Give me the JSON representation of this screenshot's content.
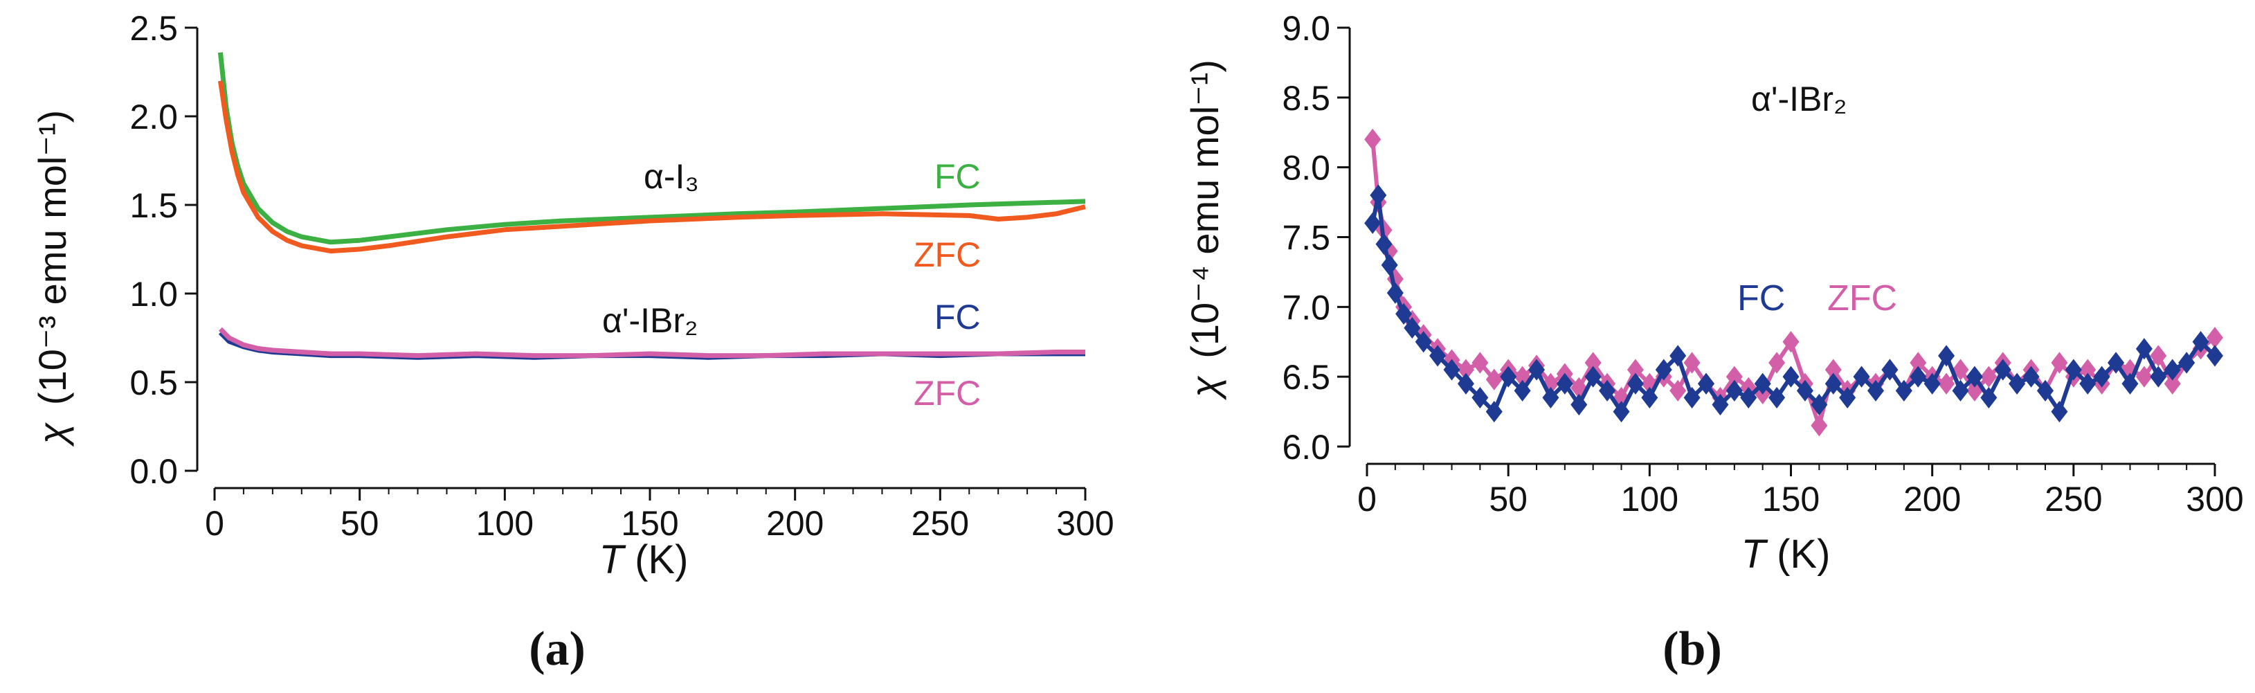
{
  "panels": [
    {
      "panel_label": "(a)",
      "x_label_italic": "T",
      "x_label_unit": " (K)",
      "y_label_symbol": "χ",
      "y_label_unit": "(10⁻³ emu mol⁻¹)",
      "colors": {
        "green": "#3cb043",
        "orange": "#f05a1e",
        "blue": "#1f3a93",
        "pink": "#d45fa9",
        "text": "#111111"
      },
      "annotations": [
        {
          "text": "α-I₃",
          "color": "#111111"
        },
        {
          "text": "FC",
          "color": "#3cb043"
        },
        {
          "text": "ZFC",
          "color": "#f05a1e"
        },
        {
          "text": "α'-IBr₂",
          "color": "#111111"
        },
        {
          "text": "FC",
          "color": "#1f3a93"
        },
        {
          "text": "ZFC",
          "color": "#d45fa9"
        }
      ]
    },
    {
      "panel_label": "(b)",
      "x_label_italic": "T",
      "x_label_unit": " (K)",
      "y_label_symbol": "χ",
      "y_label_unit": "(10⁻⁴ emu mol⁻¹)",
      "colors": {
        "blue": "#1f3a93",
        "pink": "#d45fa9",
        "text": "#111111"
      },
      "annotations": [
        {
          "text": "α'-IBr₂",
          "color": "#111111"
        },
        {
          "text": "FC",
          "color": "#1f3a93"
        },
        {
          "text": "ZFC",
          "color": "#d45fa9"
        }
      ]
    }
  ],
  "chart_data": [
    {
      "type": "line",
      "title": "",
      "xlabel": "T (K)",
      "ylabel": "χ (10⁻³ emu mol⁻¹)",
      "xlim": [
        0,
        300
      ],
      "ylim": [
        0,
        2.5
      ],
      "xticks": [
        0,
        50,
        100,
        150,
        200,
        250,
        300
      ],
      "yticks": [
        0.0,
        0.5,
        1.0,
        1.5,
        2.0,
        2.5
      ],
      "ytick_labels": [
        "0.0",
        "0.5",
        "1.0",
        "1.5",
        "2.0",
        "2.5"
      ],
      "series": [
        {
          "name": "α-I₃ FC",
          "color": "#3cb043",
          "x": [
            2,
            4,
            6,
            8,
            10,
            15,
            20,
            25,
            30,
            40,
            50,
            60,
            80,
            100,
            120,
            150,
            180,
            200,
            230,
            260,
            280,
            300
          ],
          "values": [
            2.36,
            2.05,
            1.85,
            1.72,
            1.62,
            1.48,
            1.4,
            1.35,
            1.32,
            1.29,
            1.3,
            1.32,
            1.36,
            1.39,
            1.41,
            1.43,
            1.45,
            1.46,
            1.48,
            1.5,
            1.51,
            1.52
          ]
        },
        {
          "name": "α-I₃ ZFC",
          "color": "#f05a1e",
          "x": [
            2,
            4,
            6,
            8,
            10,
            15,
            20,
            25,
            30,
            40,
            50,
            60,
            80,
            100,
            120,
            150,
            180,
            200,
            230,
            260,
            270,
            280,
            290,
            300
          ],
          "values": [
            2.2,
            1.98,
            1.8,
            1.67,
            1.57,
            1.43,
            1.35,
            1.3,
            1.27,
            1.24,
            1.25,
            1.27,
            1.32,
            1.36,
            1.38,
            1.41,
            1.43,
            1.44,
            1.45,
            1.44,
            1.42,
            1.43,
            1.45,
            1.49
          ]
        },
        {
          "name": "α'-IBr₂ FC",
          "color": "#1f3a93",
          "x": [
            2,
            5,
            10,
            15,
            20,
            30,
            40,
            50,
            70,
            90,
            110,
            130,
            150,
            170,
            190,
            210,
            230,
            250,
            270,
            290,
            300
          ],
          "values": [
            0.78,
            0.73,
            0.7,
            0.68,
            0.67,
            0.66,
            0.65,
            0.65,
            0.64,
            0.65,
            0.64,
            0.65,
            0.65,
            0.64,
            0.65,
            0.65,
            0.66,
            0.65,
            0.66,
            0.66,
            0.66
          ]
        },
        {
          "name": "α'-IBr₂ ZFC",
          "color": "#d45fa9",
          "x": [
            2,
            5,
            10,
            15,
            20,
            30,
            40,
            50,
            70,
            90,
            110,
            130,
            150,
            170,
            190,
            210,
            230,
            250,
            270,
            290,
            300
          ],
          "values": [
            0.8,
            0.75,
            0.71,
            0.69,
            0.68,
            0.67,
            0.66,
            0.66,
            0.65,
            0.66,
            0.65,
            0.65,
            0.66,
            0.65,
            0.65,
            0.66,
            0.66,
            0.66,
            0.66,
            0.67,
            0.67
          ]
        }
      ]
    },
    {
      "type": "line",
      "title": "",
      "xlabel": "T (K)",
      "ylabel": "χ (10⁻⁴ emu mol⁻¹)",
      "xlim": [
        0,
        300
      ],
      "ylim": [
        6.0,
        9.0
      ],
      "xticks": [
        0,
        50,
        100,
        150,
        200,
        250,
        300
      ],
      "yticks": [
        6.0,
        6.5,
        7.0,
        7.5,
        8.0,
        8.5,
        9.0
      ],
      "ytick_labels": [
        "6.0",
        "6.5",
        "7.0",
        "7.5",
        "8.0",
        "8.5",
        "9.0"
      ],
      "series": [
        {
          "name": "α'-IBr₂ ZFC",
          "color": "#d45fa9",
          "marker": "diamond",
          "x": [
            2,
            4,
            6,
            8,
            10,
            13,
            16,
            20,
            25,
            30,
            35,
            40,
            45,
            50,
            55,
            60,
            65,
            70,
            75,
            80,
            85,
            90,
            95,
            100,
            105,
            110,
            115,
            120,
            125,
            130,
            135,
            140,
            145,
            150,
            155,
            160,
            165,
            170,
            175,
            180,
            185,
            190,
            195,
            200,
            205,
            210,
            215,
            220,
            225,
            230,
            235,
            240,
            245,
            250,
            255,
            260,
            265,
            270,
            275,
            280,
            285,
            290,
            295,
            300
          ],
          "values": [
            8.2,
            7.75,
            7.55,
            7.4,
            7.2,
            7.0,
            6.9,
            6.8,
            6.7,
            6.62,
            6.55,
            6.6,
            6.48,
            6.55,
            6.5,
            6.58,
            6.45,
            6.52,
            6.42,
            6.6,
            6.45,
            6.35,
            6.55,
            6.45,
            6.5,
            6.4,
            6.6,
            6.45,
            6.35,
            6.5,
            6.42,
            6.38,
            6.6,
            6.75,
            6.45,
            6.15,
            6.55,
            6.4,
            6.5,
            6.45,
            6.55,
            6.4,
            6.6,
            6.5,
            6.45,
            6.55,
            6.4,
            6.5,
            6.6,
            6.45,
            6.55,
            6.4,
            6.6,
            6.5,
            6.55,
            6.45,
            6.6,
            6.55,
            6.5,
            6.65,
            6.45,
            6.6,
            6.7,
            6.78
          ]
        },
        {
          "name": "α'-IBr₂ FC",
          "color": "#1f3a93",
          "marker": "diamond",
          "x": [
            2,
            4,
            6,
            8,
            10,
            13,
            16,
            20,
            25,
            30,
            35,
            40,
            45,
            50,
            55,
            60,
            65,
            70,
            75,
            80,
            85,
            90,
            95,
            100,
            105,
            110,
            115,
            120,
            125,
            130,
            135,
            140,
            145,
            150,
            155,
            160,
            165,
            170,
            175,
            180,
            185,
            190,
            195,
            200,
            205,
            210,
            215,
            220,
            225,
            230,
            235,
            240,
            245,
            250,
            255,
            260,
            265,
            270,
            275,
            280,
            285,
            290,
            295,
            300
          ],
          "values": [
            7.6,
            7.8,
            7.45,
            7.3,
            7.1,
            6.95,
            6.85,
            6.75,
            6.65,
            6.55,
            6.45,
            6.35,
            6.25,
            6.5,
            6.4,
            6.55,
            6.35,
            6.45,
            6.3,
            6.5,
            6.4,
            6.25,
            6.45,
            6.35,
            6.55,
            6.65,
            6.35,
            6.45,
            6.3,
            6.4,
            6.35,
            6.45,
            6.35,
            6.5,
            6.4,
            6.3,
            6.45,
            6.35,
            6.5,
            6.4,
            6.55,
            6.4,
            6.5,
            6.45,
            6.65,
            6.4,
            6.5,
            6.35,
            6.55,
            6.45,
            6.5,
            6.4,
            6.25,
            6.55,
            6.45,
            6.5,
            6.6,
            6.45,
            6.7,
            6.5,
            6.55,
            6.6,
            6.75,
            6.65
          ]
        }
      ]
    }
  ]
}
